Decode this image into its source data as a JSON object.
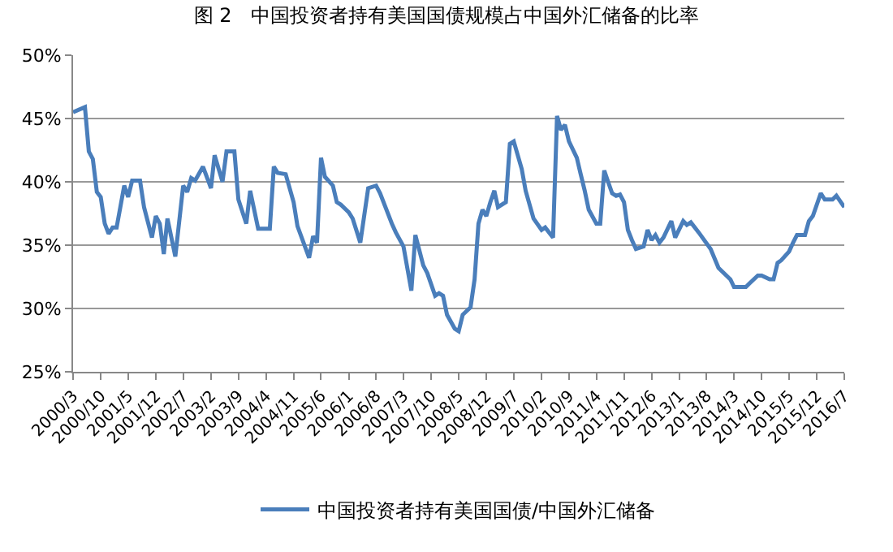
{
  "chart_data": {
    "type": "line",
    "title": "图 2　中国投资者持有美国国债规模占中国外汇储备的比率",
    "x": [
      "2000-03",
      "2000-06",
      "2000-07",
      "2000-08",
      "2000-09",
      "2000-10",
      "2000-11",
      "2000-12",
      "2001-01",
      "2001-02",
      "2001-04",
      "2001-05",
      "2001-06",
      "2001-08",
      "2001-09",
      "2001-11",
      "2001-12",
      "2002-01",
      "2002-02",
      "2002-03",
      "2002-05",
      "2002-07",
      "2002-08",
      "2002-09",
      "2002-10",
      "2002-12",
      "2003-02",
      "2003-03",
      "2003-05",
      "2003-06",
      "2003-08",
      "2003-09",
      "2003-11",
      "2003-12",
      "2004-02",
      "2004-05",
      "2004-06",
      "2004-07",
      "2004-09",
      "2004-11",
      "2004-12",
      "2005-03",
      "2005-04",
      "2005-05",
      "2005-06",
      "2005-07",
      "2005-09",
      "2005-10",
      "2005-11",
      "2006-01",
      "2006-02",
      "2006-04",
      "2006-06",
      "2006-08",
      "2006-09",
      "2006-12",
      "2007-01",
      "2007-03",
      "2007-05",
      "2007-06",
      "2007-08",
      "2007-09",
      "2007-11",
      "2007-12",
      "2008-01",
      "2008-02",
      "2008-04",
      "2008-05",
      "2008-06",
      "2008-08",
      "2008-09",
      "2008-10",
      "2008-11",
      "2008-12",
      "2009-01",
      "2009-02",
      "2009-03",
      "2009-05",
      "2009-06",
      "2009-07",
      "2009-09",
      "2009-10",
      "2009-12",
      "2010-02",
      "2010-03",
      "2010-05",
      "2010-06",
      "2010-07",
      "2010-08",
      "2010-09",
      "2010-11",
      "2010-12",
      "2011-01",
      "2011-02",
      "2011-04",
      "2011-05",
      "2011-06",
      "2011-07",
      "2011-08",
      "2011-09",
      "2011-10",
      "2011-11",
      "2011-12",
      "2012-01",
      "2012-02",
      "2012-04",
      "2012-05",
      "2012-06",
      "2012-07",
      "2012-08",
      "2012-09",
      "2012-11",
      "2012-12",
      "2013-02",
      "2013-03",
      "2013-04",
      "2013-06",
      "2013-09",
      "2013-11",
      "2014-02",
      "2014-03",
      "2014-06",
      "2014-07",
      "2014-09",
      "2014-10",
      "2014-12",
      "2015-01",
      "2015-02",
      "2015-03",
      "2015-05",
      "2015-06",
      "2015-07",
      "2015-09",
      "2015-10",
      "2015-11",
      "2016-01",
      "2016-02",
      "2016-04",
      "2016-05",
      "2016-07"
    ],
    "series": [
      {
        "name": "中国投资者持有美国国债/中国外汇储备",
        "color": "#4a7ebb",
        "values": [
          45.5,
          45.9,
          42.4,
          41.8,
          39.2,
          38.8,
          36.7,
          35.9,
          36.4,
          36.4,
          39.7,
          38.8,
          40.1,
          40.1,
          38.0,
          35.6,
          37.3,
          36.7,
          34.3,
          37.1,
          34.1,
          39.7,
          39.2,
          40.3,
          40.1,
          41.2,
          39.5,
          42.1,
          40.0,
          42.4,
          42.4,
          38.6,
          36.7,
          39.3,
          36.3,
          36.3,
          41.2,
          40.7,
          40.6,
          38.4,
          36.5,
          34.0,
          35.7,
          35.2,
          41.9,
          40.4,
          39.7,
          38.4,
          38.2,
          37.6,
          37.1,
          35.2,
          39.5,
          39.7,
          39.1,
          36.7,
          36.0,
          34.9,
          31.4,
          35.8,
          33.4,
          32.8,
          31.0,
          31.2,
          31.0,
          29.5,
          28.4,
          28.2,
          29.5,
          30.1,
          32.3,
          36.7,
          37.8,
          37.3,
          38.4,
          39.3,
          38.0,
          38.4,
          43.0,
          43.2,
          41.0,
          39.3,
          37.1,
          36.2,
          36.4,
          35.6,
          45.2,
          44.1,
          44.5,
          43.2,
          41.9,
          40.6,
          39.3,
          37.8,
          36.7,
          36.7,
          40.9,
          40.0,
          39.1,
          38.9,
          39.0,
          38.4,
          36.2,
          35.4,
          34.7,
          34.9,
          36.2,
          35.4,
          35.8,
          35.2,
          35.6,
          36.9,
          35.6,
          36.9,
          36.6,
          36.8,
          36.0,
          34.7,
          33.2,
          32.3,
          31.7,
          31.7,
          32.0,
          32.6,
          32.6,
          32.3,
          32.3,
          33.6,
          33.8,
          34.5,
          35.2,
          35.8,
          35.8,
          36.9,
          37.3,
          39.1,
          38.6,
          38.6,
          38.9,
          38.0
        ]
      }
    ],
    "xlim": [
      "2000-03",
      "2016-07"
    ],
    "xticks": [
      {
        "value": "2000-03",
        "label": "2000/3"
      },
      {
        "value": "2000-10",
        "label": "2000/10"
      },
      {
        "value": "2001-05",
        "label": "2001/5"
      },
      {
        "value": "2001-12",
        "label": "2001/12"
      },
      {
        "value": "2002-07",
        "label": "2002/7"
      },
      {
        "value": "2003-02",
        "label": "2003/2"
      },
      {
        "value": "2003-09",
        "label": "2003/9"
      },
      {
        "value": "2004-04",
        "label": "2004/4"
      },
      {
        "value": "2004-11",
        "label": "2004/11"
      },
      {
        "value": "2005-06",
        "label": "2005/6"
      },
      {
        "value": "2006-01",
        "label": "2006/1"
      },
      {
        "value": "2006-08",
        "label": "2006/8"
      },
      {
        "value": "2007-03",
        "label": "2007/3"
      },
      {
        "value": "2007-10",
        "label": "2007/10"
      },
      {
        "value": "2008-05",
        "label": "2008/5"
      },
      {
        "value": "2008-12",
        "label": "2008/12"
      },
      {
        "value": "2009-07",
        "label": "2009/7"
      },
      {
        "value": "2010-02",
        "label": "2010/2"
      },
      {
        "value": "2010-09",
        "label": "2010/9"
      },
      {
        "value": "2011-04",
        "label": "2011/4"
      },
      {
        "value": "2011-11",
        "label": "2011/11"
      },
      {
        "value": "2012-06",
        "label": "2012/6"
      },
      {
        "value": "2013-01",
        "label": "2013/1"
      },
      {
        "value": "2013-08",
        "label": "2013/8"
      },
      {
        "value": "2014-03",
        "label": "2014/3"
      },
      {
        "value": "2014-10",
        "label": "2014/10"
      },
      {
        "value": "2015-05",
        "label": "2015/5"
      },
      {
        "value": "2015-12",
        "label": "2015/12"
      },
      {
        "value": "2016-07",
        "label": "2016/7"
      }
    ],
    "ylim": [
      25,
      50
    ],
    "yticks": [
      {
        "value": 25,
        "label": "25%"
      },
      {
        "value": 30,
        "label": "30%"
      },
      {
        "value": 35,
        "label": "35%"
      },
      {
        "value": 40,
        "label": "40%"
      },
      {
        "value": 45,
        "label": "45%"
      },
      {
        "value": 50,
        "label": "50%"
      }
    ],
    "grid": "y",
    "legend": "bottom",
    "marker": "none",
    "line_style": "solid"
  }
}
